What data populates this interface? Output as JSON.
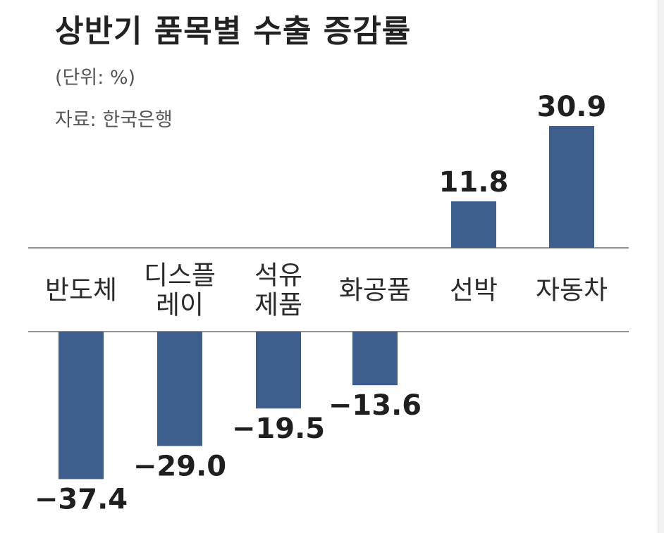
{
  "title": "상반기 품목별 수출 증감률",
  "unit_note": "(단위: %)",
  "source_note": "자료: 한국은행",
  "colors": {
    "bar": "#3e5f8e",
    "axis": "#6d6d6d"
  },
  "chart_data": {
    "type": "bar",
    "title": "상반기 품목별 수출 증감률",
    "categories": [
      [
        "반도체"
      ],
      [
        "디스플",
        "레이"
      ],
      [
        "석유",
        "제품"
      ],
      [
        "화공품"
      ],
      [
        "선박"
      ],
      [
        "자동차"
      ]
    ],
    "values": [
      -37.4,
      -29.0,
      -19.5,
      -13.6,
      11.8,
      30.9
    ],
    "value_labels": [
      "−37.4",
      "−29.0",
      "−19.5",
      "−13.6",
      "11.8",
      "30.9"
    ],
    "xlabel": "",
    "ylabel": "",
    "grid": false
  }
}
